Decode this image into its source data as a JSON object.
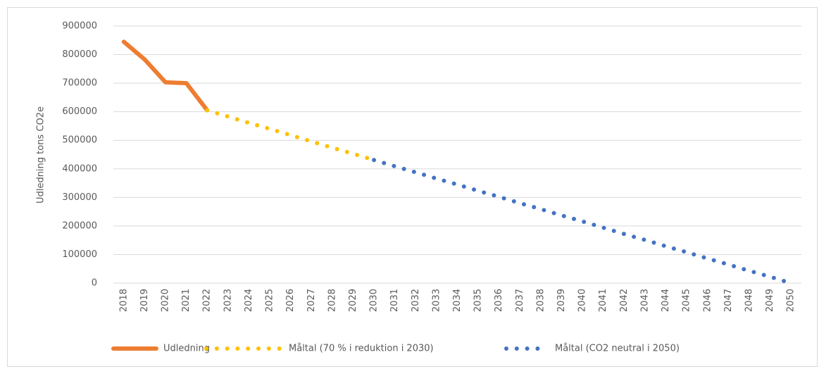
{
  "chart_data": {
    "type": "line",
    "y_label": "Udledning tons CO2e",
    "categories": [
      "2018",
      "2019",
      "2020",
      "2021",
      "2022",
      "2023",
      "2024",
      "2025",
      "2026",
      "2027",
      "2028",
      "2029",
      "2030",
      "2031",
      "2032",
      "2033",
      "2034",
      "2035",
      "2036",
      "2037",
      "2038",
      "2039",
      "2040",
      "2041",
      "2042",
      "2043",
      "2044",
      "2045",
      "2046",
      "2047",
      "2048",
      "2049",
      "2050"
    ],
    "series": [
      {
        "name": "Udledning",
        "color": "#ed7d31",
        "style": "solid",
        "values": [
          845000,
          783000,
          703000,
          700000,
          605000,
          null,
          null,
          null,
          null,
          null,
          null,
          null,
          null,
          null,
          null,
          null,
          null,
          null,
          null,
          null,
          null,
          null,
          null,
          null,
          null,
          null,
          null,
          null,
          null,
          null,
          null,
          null,
          null
        ]
      },
      {
        "name": "Måltal (70 % i reduktion i 2030)",
        "color": "#ffc000",
        "style": "dotted",
        "values": [
          null,
          null,
          null,
          null,
          605000,
          583000,
          561000,
          540000,
          518000,
          496000,
          474000,
          453000,
          431000,
          null,
          null,
          null,
          null,
          null,
          null,
          null,
          null,
          null,
          null,
          null,
          null,
          null,
          null,
          null,
          null,
          null,
          null,
          null,
          null
        ]
      },
      {
        "name": "Måltal (CO2 neutral i 2050)",
        "color": "#4472c4",
        "style": "dotted",
        "values": [
          null,
          null,
          null,
          null,
          null,
          null,
          null,
          null,
          null,
          null,
          null,
          null,
          431000,
          409000,
          388000,
          366000,
          345000,
          323000,
          302000,
          280000,
          259000,
          237000,
          216000,
          194000,
          172000,
          151000,
          129000,
          108000,
          86000,
          65000,
          43000,
          22000,
          0
        ]
      }
    ],
    "ylim": [
      0,
      900000
    ],
    "yticks": [
      0,
      100000,
      200000,
      300000,
      400000,
      500000,
      600000,
      700000,
      800000,
      900000
    ],
    "grid": true,
    "legend": "bottom"
  }
}
